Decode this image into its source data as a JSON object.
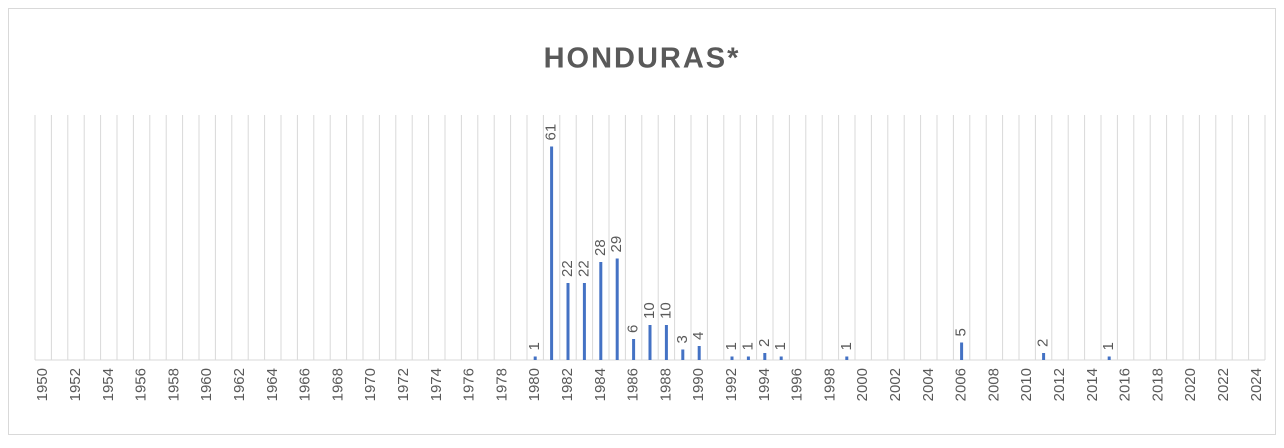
{
  "chart_data": {
    "type": "bar",
    "title": "HONDURAS*",
    "categories": [
      "1950",
      null,
      "1952",
      null,
      "1954",
      null,
      "1956",
      null,
      "1958",
      null,
      "1960",
      null,
      "1962",
      null,
      "1964",
      null,
      "1966",
      null,
      "1968",
      null,
      "1970",
      null,
      "1972",
      null,
      "1974",
      null,
      "1976",
      null,
      "1978",
      null,
      "1980",
      null,
      "1982",
      null,
      "1984",
      null,
      "1986",
      null,
      "1988",
      null,
      "1990",
      null,
      "1992",
      null,
      "1994",
      null,
      "1996",
      null,
      "1998",
      null,
      "2000",
      null,
      "2002",
      null,
      "2004",
      null,
      "2006",
      null,
      "2008",
      null,
      "2010",
      null,
      "2012",
      null,
      "2014",
      null,
      "2016",
      null,
      "2018",
      null,
      "2020",
      null,
      "2022",
      null,
      "2024"
    ],
    "values": [
      null,
      null,
      null,
      null,
      null,
      null,
      null,
      null,
      null,
      null,
      null,
      null,
      null,
      null,
      null,
      null,
      null,
      null,
      null,
      null,
      null,
      null,
      null,
      null,
      null,
      null,
      null,
      null,
      null,
      null,
      1,
      61,
      22,
      22,
      28,
      29,
      6,
      10,
      10,
      3,
      4,
      null,
      1,
      1,
      2,
      1,
      null,
      null,
      null,
      1,
      null,
      null,
      null,
      null,
      null,
      null,
      5,
      null,
      null,
      null,
      null,
      2,
      null,
      null,
      null,
      1,
      null,
      null,
      null,
      null,
      null,
      null,
      null,
      null,
      null
    ],
    "color": "#4472c4",
    "ylim": [
      0,
      70
    ],
    "grid": true
  }
}
